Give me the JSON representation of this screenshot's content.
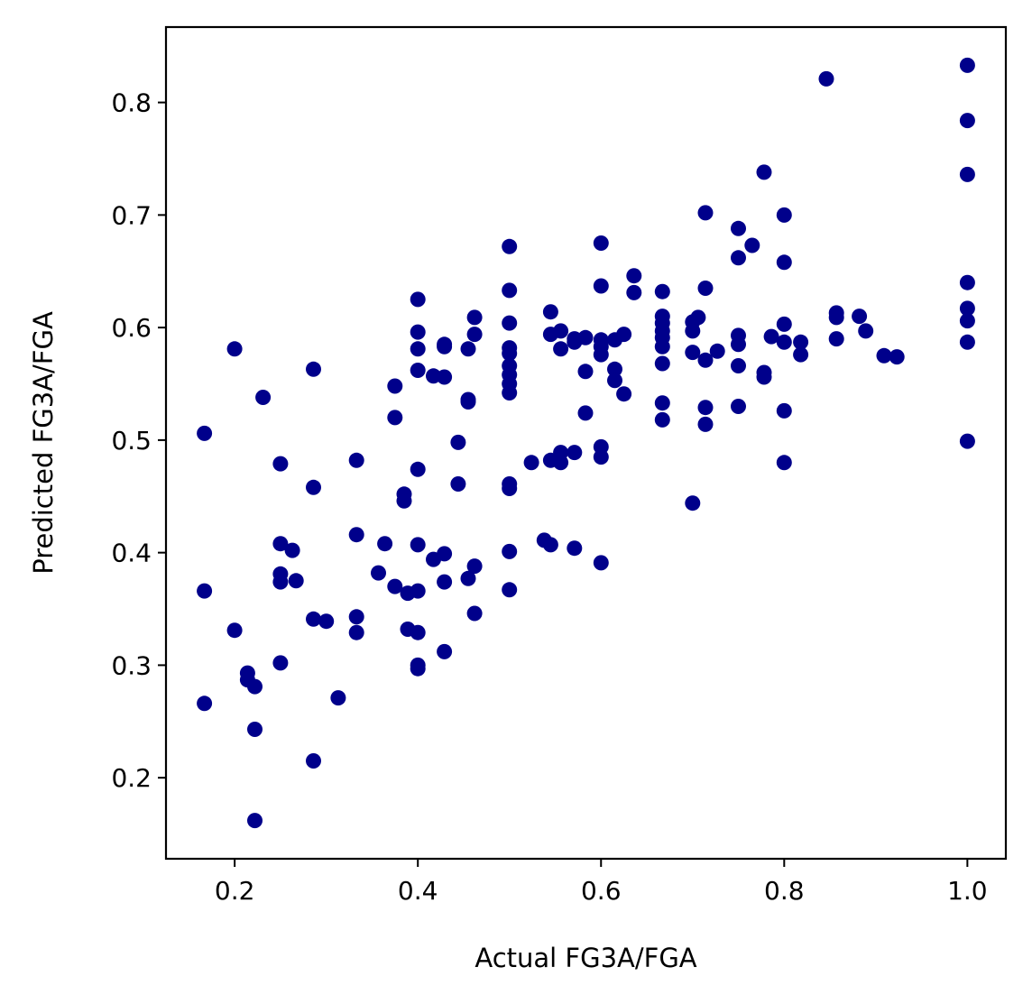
{
  "chart_data": {
    "type": "scatter",
    "title": "",
    "xlabel": "Actual FG3A/FGA",
    "ylabel": "Predicted FG3A/FGA",
    "xlim": [
      0.125,
      1.042
    ],
    "ylim": [
      0.128,
      0.867
    ],
    "grid": false,
    "color": "#00008b",
    "xticks": [
      0.2,
      0.4,
      0.6,
      0.8,
      1.0
    ],
    "xtick_labels": [
      "0.2",
      "0.4",
      "0.6",
      "0.8",
      "1.0"
    ],
    "yticks": [
      0.2,
      0.3,
      0.4,
      0.5,
      0.6,
      0.7,
      0.8
    ],
    "ytick_labels": [
      "0.2",
      "0.3",
      "0.4",
      "0.5",
      "0.6",
      "0.7",
      "0.8"
    ],
    "points": [
      [
        0.167,
        0.506
      ],
      [
        0.167,
        0.366
      ],
      [
        0.167,
        0.266
      ],
      [
        0.2,
        0.581
      ],
      [
        0.2,
        0.331
      ],
      [
        0.214,
        0.293
      ],
      [
        0.214,
        0.287
      ],
      [
        0.222,
        0.281
      ],
      [
        0.222,
        0.243
      ],
      [
        0.222,
        0.162
      ],
      [
        0.231,
        0.538
      ],
      [
        0.25,
        0.479
      ],
      [
        0.25,
        0.408
      ],
      [
        0.25,
        0.381
      ],
      [
        0.25,
        0.374
      ],
      [
        0.25,
        0.302
      ],
      [
        0.263,
        0.402
      ],
      [
        0.267,
        0.375
      ],
      [
        0.286,
        0.563
      ],
      [
        0.286,
        0.458
      ],
      [
        0.286,
        0.341
      ],
      [
        0.286,
        0.215
      ],
      [
        0.3,
        0.339
      ],
      [
        0.313,
        0.271
      ],
      [
        0.333,
        0.482
      ],
      [
        0.333,
        0.416
      ],
      [
        0.333,
        0.343
      ],
      [
        0.333,
        0.329
      ],
      [
        0.357,
        0.382
      ],
      [
        0.364,
        0.408
      ],
      [
        0.375,
        0.548
      ],
      [
        0.375,
        0.52
      ],
      [
        0.375,
        0.37
      ],
      [
        0.385,
        0.452
      ],
      [
        0.385,
        0.446
      ],
      [
        0.389,
        0.332
      ],
      [
        0.389,
        0.364
      ],
      [
        0.4,
        0.625
      ],
      [
        0.4,
        0.596
      ],
      [
        0.4,
        0.581
      ],
      [
        0.4,
        0.562
      ],
      [
        0.4,
        0.474
      ],
      [
        0.4,
        0.407
      ],
      [
        0.4,
        0.366
      ],
      [
        0.4,
        0.329
      ],
      [
        0.4,
        0.3
      ],
      [
        0.4,
        0.297
      ],
      [
        0.417,
        0.557
      ],
      [
        0.417,
        0.394
      ],
      [
        0.429,
        0.585
      ],
      [
        0.429,
        0.583
      ],
      [
        0.429,
        0.556
      ],
      [
        0.429,
        0.399
      ],
      [
        0.429,
        0.374
      ],
      [
        0.429,
        0.312
      ],
      [
        0.444,
        0.498
      ],
      [
        0.444,
        0.461
      ],
      [
        0.455,
        0.581
      ],
      [
        0.455,
        0.536
      ],
      [
        0.455,
        0.534
      ],
      [
        0.455,
        0.377
      ],
      [
        0.462,
        0.609
      ],
      [
        0.462,
        0.594
      ],
      [
        0.462,
        0.388
      ],
      [
        0.462,
        0.346
      ],
      [
        0.5,
        0.672
      ],
      [
        0.5,
        0.633
      ],
      [
        0.5,
        0.604
      ],
      [
        0.5,
        0.582
      ],
      [
        0.5,
        0.577
      ],
      [
        0.5,
        0.566
      ],
      [
        0.5,
        0.558
      ],
      [
        0.5,
        0.55
      ],
      [
        0.5,
        0.542
      ],
      [
        0.5,
        0.461
      ],
      [
        0.5,
        0.457
      ],
      [
        0.5,
        0.401
      ],
      [
        0.5,
        0.367
      ],
      [
        0.524,
        0.48
      ],
      [
        0.538,
        0.411
      ],
      [
        0.545,
        0.614
      ],
      [
        0.545,
        0.594
      ],
      [
        0.545,
        0.482
      ],
      [
        0.545,
        0.407
      ],
      [
        0.556,
        0.597
      ],
      [
        0.556,
        0.581
      ],
      [
        0.556,
        0.489
      ],
      [
        0.556,
        0.48
      ],
      [
        0.571,
        0.59
      ],
      [
        0.571,
        0.587
      ],
      [
        0.571,
        0.489
      ],
      [
        0.571,
        0.404
      ],
      [
        0.583,
        0.591
      ],
      [
        0.583,
        0.561
      ],
      [
        0.583,
        0.524
      ],
      [
        0.6,
        0.675
      ],
      [
        0.6,
        0.637
      ],
      [
        0.6,
        0.589
      ],
      [
        0.6,
        0.583
      ],
      [
        0.6,
        0.576
      ],
      [
        0.6,
        0.494
      ],
      [
        0.6,
        0.485
      ],
      [
        0.6,
        0.391
      ],
      [
        0.615,
        0.589
      ],
      [
        0.615,
        0.563
      ],
      [
        0.615,
        0.553
      ],
      [
        0.625,
        0.594
      ],
      [
        0.625,
        0.541
      ],
      [
        0.636,
        0.646
      ],
      [
        0.636,
        0.631
      ],
      [
        0.667,
        0.632
      ],
      [
        0.667,
        0.61
      ],
      [
        0.667,
        0.604
      ],
      [
        0.667,
        0.597
      ],
      [
        0.667,
        0.591
      ],
      [
        0.667,
        0.583
      ],
      [
        0.667,
        0.568
      ],
      [
        0.667,
        0.533
      ],
      [
        0.667,
        0.518
      ],
      [
        0.7,
        0.605
      ],
      [
        0.7,
        0.597
      ],
      [
        0.7,
        0.578
      ],
      [
        0.7,
        0.444
      ],
      [
        0.706,
        0.609
      ],
      [
        0.714,
        0.702
      ],
      [
        0.714,
        0.635
      ],
      [
        0.714,
        0.571
      ],
      [
        0.714,
        0.529
      ],
      [
        0.714,
        0.514
      ],
      [
        0.727,
        0.579
      ],
      [
        0.75,
        0.688
      ],
      [
        0.75,
        0.662
      ],
      [
        0.75,
        0.593
      ],
      [
        0.75,
        0.585
      ],
      [
        0.75,
        0.566
      ],
      [
        0.75,
        0.53
      ],
      [
        0.765,
        0.673
      ],
      [
        0.778,
        0.738
      ],
      [
        0.778,
        0.56
      ],
      [
        0.778,
        0.556
      ],
      [
        0.786,
        0.592
      ],
      [
        0.8,
        0.7
      ],
      [
        0.8,
        0.658
      ],
      [
        0.8,
        0.603
      ],
      [
        0.8,
        0.587
      ],
      [
        0.8,
        0.526
      ],
      [
        0.8,
        0.48
      ],
      [
        0.818,
        0.587
      ],
      [
        0.818,
        0.576
      ],
      [
        0.846,
        0.821
      ],
      [
        0.857,
        0.613
      ],
      [
        0.857,
        0.609
      ],
      [
        0.857,
        0.59
      ],
      [
        0.882,
        0.61
      ],
      [
        0.889,
        0.597
      ],
      [
        0.909,
        0.575
      ],
      [
        0.923,
        0.574
      ],
      [
        1.0,
        0.833
      ],
      [
        1.0,
        0.784
      ],
      [
        1.0,
        0.736
      ],
      [
        1.0,
        0.64
      ],
      [
        1.0,
        0.617
      ],
      [
        1.0,
        0.606
      ],
      [
        1.0,
        0.587
      ],
      [
        1.0,
        0.499
      ]
    ]
  }
}
